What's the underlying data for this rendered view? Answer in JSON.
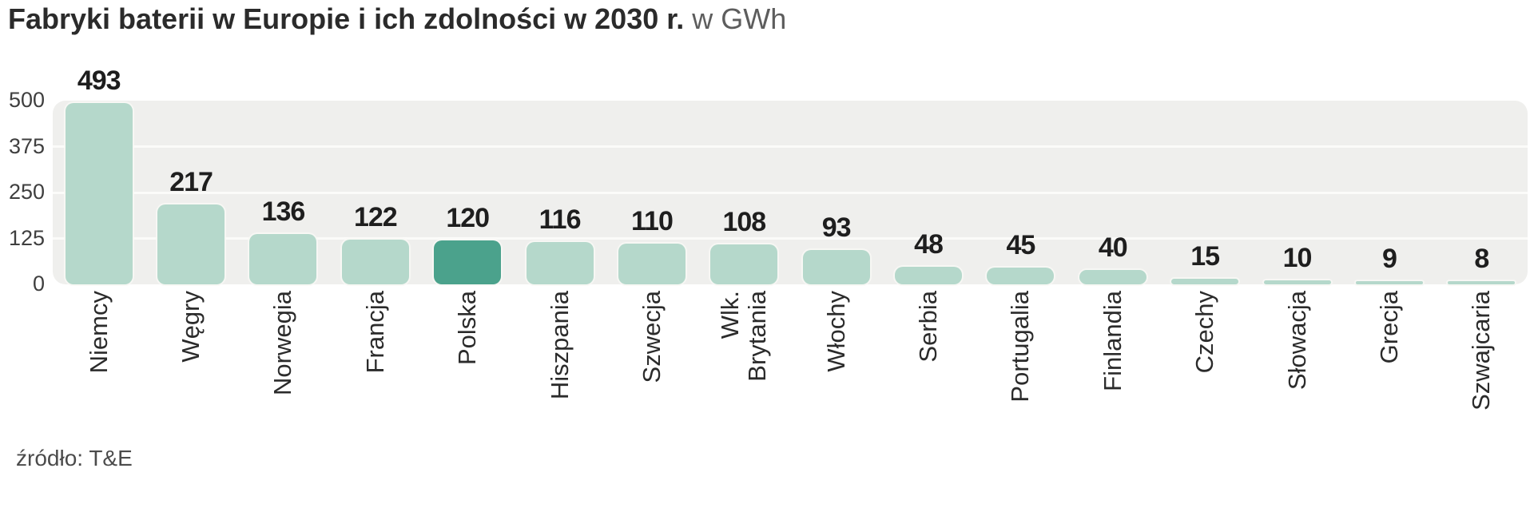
{
  "title": {
    "bold": "Fabryki baterii w Europie i ich zdolności w 2030 r.",
    "unit": " w GWh"
  },
  "source": "źródło: T&E",
  "chart_data": {
    "type": "bar",
    "title": "Fabryki baterii w Europie i ich zdolności w 2030 r.",
    "unit_label": "w GWh",
    "ylabel": "GWh",
    "ylim": [
      0,
      500
    ],
    "y_ticks": [
      500,
      375,
      250,
      125,
      0
    ],
    "gridline_ticks": [
      375,
      250,
      125
    ],
    "grid": "horizontal",
    "legend": "none",
    "categories": [
      "Niemcy",
      "Węgry",
      "Norwegia",
      "Francja",
      "Polska",
      "Hiszpania",
      "Szwecja",
      "Wlk. Brytania",
      "Włochy",
      "Serbia",
      "Portugalia",
      "Finlandia",
      "Czechy",
      "Słowacja",
      "Grecja",
      "Szwajcaria"
    ],
    "values": [
      493,
      217,
      136,
      122,
      120,
      116,
      110,
      108,
      93,
      48,
      45,
      40,
      15,
      10,
      9,
      8
    ],
    "highlighted_category": "Polska",
    "bars": [
      {
        "label": "Niemcy",
        "value": 493
      },
      {
        "label": "Węgry",
        "value": 217
      },
      {
        "label": "Norwegia",
        "value": 136
      },
      {
        "label": "Francja",
        "value": 122
      },
      {
        "label": "Polska",
        "value": 120,
        "highlight": true
      },
      {
        "label": "Hiszpania",
        "value": 116
      },
      {
        "label": "Szwecja",
        "value": 110
      },
      {
        "label": "Wlk. Brytania",
        "label_lines": [
          "Wlk.",
          "Brytania"
        ],
        "value": 108
      },
      {
        "label": "Włochy",
        "value": 93
      },
      {
        "label": "Serbia",
        "value": 48
      },
      {
        "label": "Portugalia",
        "value": 45
      },
      {
        "label": "Finlandia",
        "value": 40
      },
      {
        "label": "Czechy",
        "value": 15
      },
      {
        "label": "Słowacja",
        "value": 10
      },
      {
        "label": "Grecja",
        "value": 9
      },
      {
        "label": "Szwajcaria",
        "value": 8
      }
    ],
    "colors": {
      "bar": "#b5d8cb",
      "bar_highlight": "#4ba28c",
      "plot_background": "#efefed",
      "gridline": "#fbfbf9",
      "value_label": "#1e1e1e",
      "axis_label": "#3f3f3f",
      "title": "#2b2b2b",
      "title_unit": "#5d5d5d",
      "page_background": "#ffffff"
    }
  }
}
